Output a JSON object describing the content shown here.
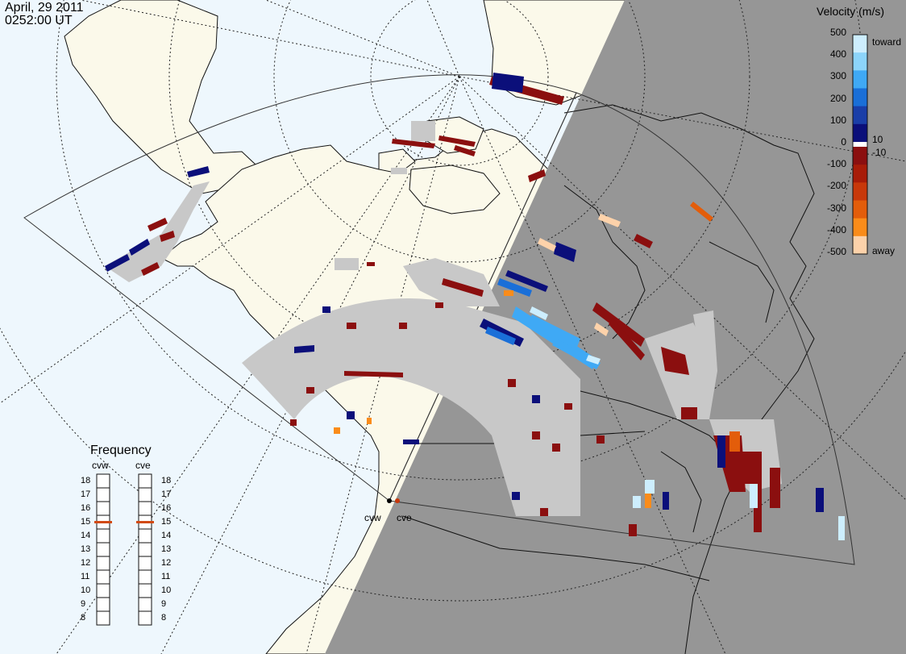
{
  "header": {
    "date": "April, 29 2011",
    "time": "0252:00 UT"
  },
  "colors": {
    "ocean": "#eef7fd",
    "land": "#fbf9ea",
    "night": "#969696",
    "ground_scatter": "#c8c8c8",
    "frequency_marker": "#d24a14"
  },
  "legend": {
    "title": "Velocity (m/s)",
    "ticks": [
      "500",
      "400",
      "300",
      "200",
      "100",
      "0",
      "-100",
      "-200",
      "-300",
      "-400",
      "-500"
    ],
    "notes": {
      "toward": "toward",
      "pos10": "10",
      "neg10": "-10",
      "away": "away"
    },
    "colorbar": [
      "#cdeefe",
      "#8cd4fa",
      "#3fa9f5",
      "#1a6fd8",
      "#1a3ea8",
      "#0b0f7a",
      "#ffffff",
      "#8b0f0f",
      "#a81c08",
      "#c8380a",
      "#e35d0a",
      "#fa8c1a",
      "#fdd2aa"
    ]
  },
  "frequency": {
    "title": "Frequency",
    "radars": [
      {
        "name": "cvw",
        "value_mhz": 15
      },
      {
        "name": "cve",
        "value_mhz": 15
      }
    ],
    "scale": [
      "18",
      "17",
      "16",
      "15",
      "14",
      "13",
      "12",
      "11",
      "10",
      "9",
      "8"
    ]
  },
  "sites": [
    "cvw",
    "cve"
  ]
}
